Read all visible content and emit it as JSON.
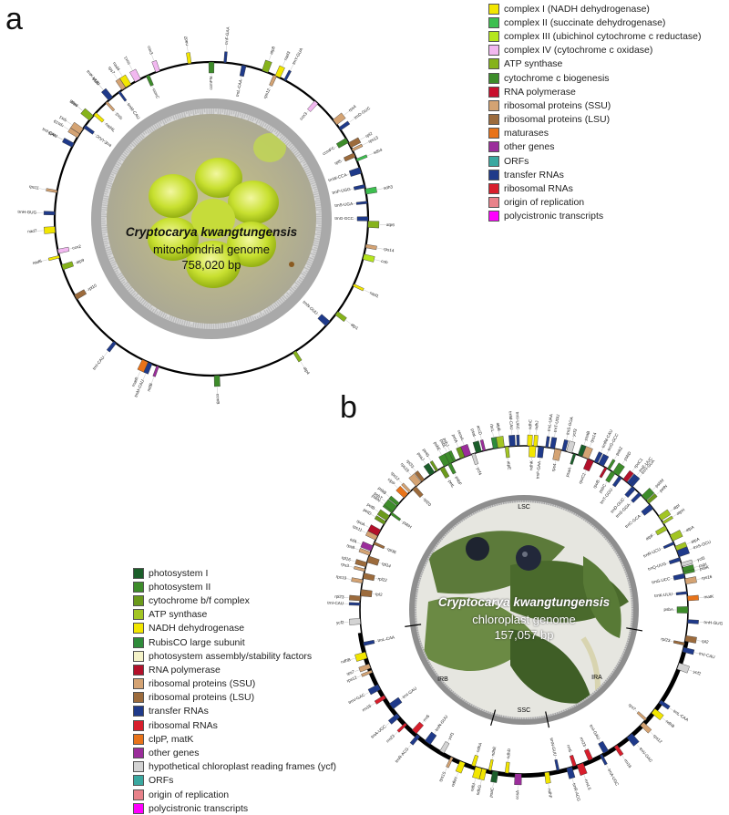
{
  "panels": {
    "a": {
      "letter": "a",
      "species": "Cryptocarya kwangtungensis",
      "genome_type": "mitochondrial genome",
      "size": "758,020 bp",
      "legend": [
        {
          "label": "complex I (NADH dehydrogenase)",
          "color": "#f2e600"
        },
        {
          "label": "complex II (succinate dehydrogenase)",
          "color": "#3dbf4f"
        },
        {
          "label": "complex III (ubichinol cytochrome c reductase)",
          "color": "#b5e61d"
        },
        {
          "label": "complex IV (cytochrome c oxidase)",
          "color": "#f2b8f0"
        },
        {
          "label": "ATP synthase",
          "color": "#86b31b"
        },
        {
          "label": "cytochrome c biogenesis",
          "color": "#3d8c2a"
        },
        {
          "label": "RNA polymerase",
          "color": "#c8102e"
        },
        {
          "label": "ribosomal proteins (SSU)",
          "color": "#d4a373"
        },
        {
          "label": "ribosomal proteins (LSU)",
          "color": "#9c6b3c"
        },
        {
          "label": "maturases",
          "color": "#e8731a"
        },
        {
          "label": "other genes",
          "color": "#9b2d9b"
        },
        {
          "label": "ORFs",
          "color": "#3aa8a0"
        },
        {
          "label": "transfer RNAs",
          "color": "#1f3a8a"
        },
        {
          "label": "ribosomal RNAs",
          "color": "#d81e2c"
        },
        {
          "label": "origin of replication",
          "color": "#e8828a"
        },
        {
          "label": "polycistronic transcripts",
          "color": "#ff00ff"
        }
      ],
      "genes": [
        {
          "label": "nad9",
          "a": -62
        },
        {
          "label": "rps19",
          "a": -58
        },
        {
          "label": "rps1",
          "a": -56
        },
        {
          "label": "trnE-UUC",
          "a": -54
        },
        {
          "label": "nad5",
          "a": -50
        },
        {
          "label": "rps3",
          "a": -42
        },
        {
          "label": "rpl16",
          "a": -40
        },
        {
          "label": "cox1",
          "a": -28
        },
        {
          "label": "nad2",
          "a": -8
        },
        {
          "label": "ccmFN",
          "a": 0
        },
        {
          "label": "trnF-GAA",
          "a": 5
        },
        {
          "label": "trnL-CAA",
          "a": 12
        },
        {
          "label": "atp8",
          "a": 20
        },
        {
          "label": "rps12",
          "a": 24
        },
        {
          "label": "nad3",
          "a": 25
        },
        {
          "label": "trnY-GUA",
          "a": 28
        },
        {
          "label": "cox3",
          "a": 42
        },
        {
          "label": "rps4",
          "a": 52
        },
        {
          "label": "trnD-GUC",
          "a": 55
        },
        {
          "label": "rpl2",
          "a": 62
        },
        {
          "label": "rps13",
          "a": 64
        },
        {
          "label": "rpl5",
          "a": 66
        },
        {
          "label": "trnW-CCA",
          "a": 72
        },
        {
          "label": "trnP-UGG",
          "a": 78
        },
        {
          "label": "sdh3",
          "a": 80
        },
        {
          "label": "trnS-UGA",
          "a": 84
        },
        {
          "label": "trnG-GCC",
          "a": 90
        },
        {
          "label": "atp6",
          "a": 92
        },
        {
          "label": "rps14",
          "a": 100
        },
        {
          "label": "cob",
          "a": 104
        },
        {
          "label": "nad1",
          "a": 115
        },
        {
          "label": "atp1",
          "a": 127
        },
        {
          "label": "trnN-GUU",
          "a": 132
        },
        {
          "label": "atp4",
          "a": 148
        },
        {
          "label": "ccmB",
          "a": 178
        },
        {
          "label": "mttB",
          "a": 200
        },
        {
          "label": "trnM-CAU",
          "a": 203
        },
        {
          "label": "matR",
          "a": 205
        },
        {
          "label": "trnI-CAU",
          "a": 218
        },
        {
          "label": "rpl10",
          "a": 240
        },
        {
          "label": "nad6",
          "a": 256
        },
        {
          "label": "cox2",
          "a": 258
        },
        {
          "label": "nad7",
          "a": 266
        },
        {
          "label": "trnH-GUG",
          "a": 272
        },
        {
          "label": "atp9",
          "a": 252
        },
        {
          "label": "rps11",
          "a": 280
        },
        {
          "label": "trnI-CAU",
          "a": 298
        },
        {
          "label": "atp4",
          "a": 310
        },
        {
          "label": "nad4L",
          "a": 312
        },
        {
          "label": "trnK-UUU",
          "a": 320
        },
        {
          "label": "trnM-CAU",
          "a": 324
        },
        {
          "label": "rps7",
          "a": 326
        },
        {
          "label": "nad4",
          "a": 328
        },
        {
          "label": "ccmC",
          "a": 336
        },
        {
          "label": "ccmFC",
          "a": 60
        },
        {
          "label": "sdh4",
          "a": 68
        },
        {
          "label": "cox3",
          "a": 340
        }
      ]
    },
    "b": {
      "letter": "b",
      "species": "Cryptocarya kwangtungensis",
      "genome_type": "chloroplast genome",
      "size": "157,057 bp",
      "regions": {
        "lsc": "LSC",
        "ssc": "SSC",
        "ira": "IRA",
        "irb": "IRB"
      },
      "legend": [
        {
          "label": "photosystem I",
          "color": "#1b5e2a"
        },
        {
          "label": "photosystem II",
          "color": "#3d8c2a"
        },
        {
          "label": "cytochrome b/f complex",
          "color": "#6b9a1b"
        },
        {
          "label": "ATP synthase",
          "color": "#a2c523"
        },
        {
          "label": "NADH dehydrogenase",
          "color": "#f2e600"
        },
        {
          "label": "RubisCO large subunit",
          "color": "#2e8b3a"
        },
        {
          "label": "photosystem assembly/stability factors",
          "color": "#f4f2c8"
        },
        {
          "label": "RNA polymerase",
          "color": "#b3102a"
        },
        {
          "label": "ribosomal proteins (SSU)",
          "color": "#d4a373"
        },
        {
          "label": "ribosomal proteins (LSU)",
          "color": "#9c6b3c"
        },
        {
          "label": "transfer RNAs",
          "color": "#1f3a8a"
        },
        {
          "label": "ribosomal RNAs",
          "color": "#d81e2c"
        },
        {
          "label": "clpP, matK",
          "color": "#e8731a"
        },
        {
          "label": "other genes",
          "color": "#9b2d9b"
        },
        {
          "label": "hypothetical chloroplast reading frames (ycf)",
          "color": "#d3d3d3"
        },
        {
          "label": "ORFs",
          "color": "#3aa8a0"
        },
        {
          "label": "origin of replication",
          "color": "#e8828a"
        },
        {
          "label": "polycistronic transcripts",
          "color": "#ff00ff"
        }
      ],
      "genes": [
        {
          "label": "rpoB",
          "a": 30
        },
        {
          "label": "rpoC1",
          "a": 38
        },
        {
          "label": "rpoC2",
          "a": 24
        },
        {
          "label": "trnS-GGA",
          "a": 45
        },
        {
          "label": "atpI",
          "a": 56
        },
        {
          "label": "atpH",
          "a": 58
        },
        {
          "label": "atpF",
          "a": 60
        },
        {
          "label": "atpA",
          "a": 64
        },
        {
          "label": "ycf3",
          "a": 74
        },
        {
          "label": "rps16",
          "a": 80
        },
        {
          "label": "trnK-UUU",
          "a": 84
        },
        {
          "label": "matK",
          "a": 86
        },
        {
          "label": "psbA",
          "a": 90
        },
        {
          "label": "trnH-GUG",
          "a": 94
        },
        {
          "label": "rpl2",
          "a": 100
        },
        {
          "label": "rpl23",
          "a": 102
        },
        {
          "label": "trnI-CAU",
          "a": 104
        },
        {
          "label": "ycf2",
          "a": 110
        },
        {
          "label": "trnL-CAA",
          "a": 124
        },
        {
          "label": "ndhB",
          "a": 128
        },
        {
          "label": "rps7",
          "a": 132
        },
        {
          "label": "rps12",
          "a": 134
        },
        {
          "label": "trnV-GAC",
          "a": 140
        },
        {
          "label": "rrn16",
          "a": 146
        },
        {
          "label": "trnI-GAU",
          "a": 150
        },
        {
          "label": "trnA-UGC",
          "a": 152
        },
        {
          "label": "rrn23",
          "a": 156
        },
        {
          "label": "rrn4.5",
          "a": 160
        },
        {
          "label": "rrn5",
          "a": 162
        },
        {
          "label": "trnR-ACG",
          "a": 164
        },
        {
          "label": "trnN-GUU",
          "a": 168
        },
        {
          "label": "ndhF",
          "a": 172
        },
        {
          "label": "ccsA",
          "a": 182
        },
        {
          "label": "ndhD",
          "a": 186
        },
        {
          "label": "psaC",
          "a": 190
        },
        {
          "label": "ndhE",
          "a": 192
        },
        {
          "label": "ndhG",
          "a": 194
        },
        {
          "label": "ndhI",
          "a": 196
        },
        {
          "label": "ndhA",
          "a": 198
        },
        {
          "label": "ndhH",
          "a": 202
        },
        {
          "label": "rps15",
          "a": 206
        },
        {
          "label": "ycf1",
          "a": 210
        },
        {
          "label": "trnN-GUU",
          "a": 216
        },
        {
          "label": "trnR-ACG",
          "a": 220
        },
        {
          "label": "rrn5",
          "a": 222
        },
        {
          "label": "rrn23",
          "a": 226
        },
        {
          "label": "trnA-UGC",
          "a": 230
        },
        {
          "label": "trnI-GAU",
          "a": 234
        },
        {
          "label": "rrn16",
          "a": 238
        },
        {
          "label": "trnV-GAC",
          "a": 242
        },
        {
          "label": "rps12",
          "a": 248
        },
        {
          "label": "rps7",
          "a": 250
        },
        {
          "label": "ndhB",
          "a": 254
        },
        {
          "label": "trnL-CAA",
          "a": 258
        },
        {
          "label": "ycf2",
          "a": 266
        },
        {
          "label": "trnI-CAU",
          "a": 272
        },
        {
          "label": "rpl23",
          "a": 274
        },
        {
          "label": "rpl2",
          "a": 276
        },
        {
          "label": "rps19",
          "a": 280
        },
        {
          "label": "rpl22",
          "a": 282
        },
        {
          "label": "rps3",
          "a": 284
        },
        {
          "label": "rpl16",
          "a": 286
        },
        {
          "label": "rpl14",
          "a": 288
        },
        {
          "label": "rps8",
          "a": 290
        },
        {
          "label": "infA",
          "a": 292
        },
        {
          "label": "rpl36",
          "a": 294
        },
        {
          "label": "rps11",
          "a": 296
        },
        {
          "label": "rpoA",
          "a": 298
        },
        {
          "label": "petD",
          "a": 302
        },
        {
          "label": "petB",
          "a": 304
        },
        {
          "label": "psbH",
          "a": 306
        },
        {
          "label": "psbN",
          "a": 307
        },
        {
          "label": "psbT",
          "a": 308
        },
        {
          "label": "psbB",
          "a": 310
        },
        {
          "label": "clpP",
          "a": 314
        },
        {
          "label": "rps12",
          "a": 316
        },
        {
          "label": "rpl20",
          "a": 318
        },
        {
          "label": "rps18",
          "a": 320
        },
        {
          "label": "rpl33",
          "a": 322
        },
        {
          "label": "psaJ",
          "a": 326
        },
        {
          "label": "petG",
          "a": 328
        },
        {
          "label": "petL",
          "a": 330
        },
        {
          "label": "psbE",
          "a": 332
        },
        {
          "label": "psbF",
          "a": 333
        },
        {
          "label": "psbL",
          "a": 334
        },
        {
          "label": "psbJ",
          "a": 335
        },
        {
          "label": "petA",
          "a": 338
        },
        {
          "label": "cemA",
          "a": 340
        },
        {
          "label": "ycf4",
          "a": 342
        },
        {
          "label": "psaI",
          "a": 344
        },
        {
          "label": "accD",
          "a": 346
        },
        {
          "label": "rbcL",
          "a": 350
        },
        {
          "label": "atpB",
          "a": 352
        },
        {
          "label": "atpE",
          "a": 354
        },
        {
          "label": "trnM-CAU",
          "a": 356
        },
        {
          "label": "trnV-UAC",
          "a": 358
        },
        {
          "label": "ndhC",
          "a": 2
        },
        {
          "label": "ndhK",
          "a": 3
        },
        {
          "label": "ndhJ",
          "a": 4
        },
        {
          "label": "trnF-GAA",
          "a": 6
        },
        {
          "label": "trnL-UAA",
          "a": 8
        },
        {
          "label": "trnT-UGU",
          "a": 10
        },
        {
          "label": "rps4",
          "a": 12
        },
        {
          "label": "trnS-GGA",
          "a": 14
        },
        {
          "label": "ycf3",
          "a": 16
        },
        {
          "label": "psaA",
          "a": 18
        },
        {
          "label": "psaB",
          "a": 20
        },
        {
          "label": "rps14",
          "a": 22
        },
        {
          "label": "trnfM-CAU",
          "a": 26
        },
        {
          "label": "trnG-GCC",
          "a": 28
        },
        {
          "label": "psbZ",
          "a": 31
        },
        {
          "label": "psbC",
          "a": 33
        },
        {
          "label": "psbD",
          "a": 34
        },
        {
          "label": "trnT-GGU",
          "a": 36
        },
        {
          "label": "trnE-UUC",
          "a": 40
        },
        {
          "label": "trnY-GUA",
          "a": 41
        },
        {
          "label": "trnD-GUC",
          "a": 42
        },
        {
          "label": "psbM",
          "a": 47
        },
        {
          "label": "petN",
          "a": 49
        },
        {
          "label": "trnC-GCA",
          "a": 51
        },
        {
          "label": "trnR-UCU",
          "a": 66
        },
        {
          "label": "atpA",
          "a": 68
        },
        {
          "label": "trnS-GCU",
          "a": 70
        },
        {
          "label": "trnQ-UUG",
          "a": 72
        },
        {
          "label": "psbI",
          "a": 76
        },
        {
          "label": "psbK",
          "a": 77
        },
        {
          "label": "trnG-UCC",
          "a": 78
        }
      ]
    }
  }
}
